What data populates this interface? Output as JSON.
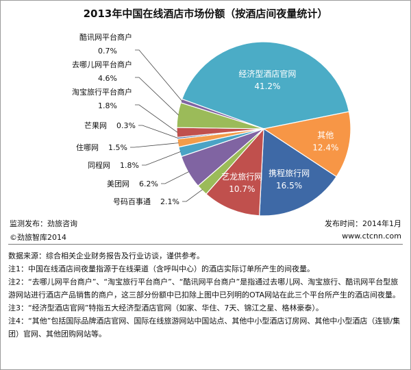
{
  "chart_data": {
    "type": "pie",
    "title": "2013年中国在线酒店市场份额（按酒店间夜量统计）",
    "unit": "%",
    "slices": [
      {
        "label": "经济型酒店官网",
        "value": 41.2,
        "value_text": "41.2%",
        "color": "#4bacc6",
        "label_inside": true
      },
      {
        "label": "其他",
        "value": 12.4,
        "value_text": "12.4%",
        "color": "#f79646",
        "label_inside": true
      },
      {
        "label": "携程旅行网",
        "value": 16.5,
        "value_text": "16.5%",
        "color": "#3e69a6",
        "label_inside": true
      },
      {
        "label": "艺龙旅行网",
        "value": 10.7,
        "value_text": "10.7%",
        "color": "#c0504d",
        "label_inside": true
      },
      {
        "label": "号码百事通",
        "value": 2.1,
        "value_text": "2.1%",
        "color": "#9bbb59",
        "label_inside": false
      },
      {
        "label": "美团网",
        "value": 6.2,
        "value_text": "6.2%",
        "color": "#8064a2",
        "label_inside": false
      },
      {
        "label": "同程网",
        "value": 1.8,
        "value_text": "1.8%",
        "color": "#4aa3c5",
        "label_inside": false
      },
      {
        "label": "住哪网",
        "value": 1.5,
        "value_text": "1.5%",
        "color": "#f39c4a",
        "label_inside": false
      },
      {
        "label": "芒果网",
        "value": 0.3,
        "value_text": "0.3%",
        "color": "#2e5e9b",
        "label_inside": false
      },
      {
        "label": "淘宝旅行平台商户",
        "value": 1.8,
        "value_text": "1.8%",
        "color": "#c0504d",
        "label_inside": false
      },
      {
        "label": "去哪儿网平台商户",
        "value": 4.6,
        "value_text": "4.6%",
        "color": "#9bbb59",
        "label_inside": false
      },
      {
        "label": "酷讯网平台商户",
        "value": 0.7,
        "value_text": "0.7%",
        "color": "#8064a2",
        "label_inside": false
      }
    ]
  },
  "footer": {
    "monitor": "监测发布：劲旅咨询",
    "publish_date": "发布时间：2014年1月",
    "copyright": "©劲旅智库2014",
    "website": "www.ctcnn.com"
  },
  "notes": [
    "数据来源：综合相关企业财务报告及行业访谈，谨供参考。",
    "注1：中国在线酒店间夜量指源于在线渠道（含呼叫中心）的酒店实际订单所产生的间夜量。",
    "注2：“去哪儿网平台商户”、“淘宝旅行平台商户”、“酷讯网平台商户”是指通过去哪儿网、淘宝旅行、酷讯网平台型旅游网站进行酒店产品销售的商户，这三部分份额中已扣除上图中已列明的OTA网站在此三个平台所产生的酒店间夜量。",
    "注3：“经济型酒店官网”特指五大经济型酒店官网（如家、华住、7天、锦江之星、格林豪泰）。",
    "注4：“其他”包括国际品牌酒店官网、国际在线旅游网站中国站点、其他中小型酒店订房网、其他中小型酒店（连锁/集团）官网、其他团购网站等。"
  ]
}
